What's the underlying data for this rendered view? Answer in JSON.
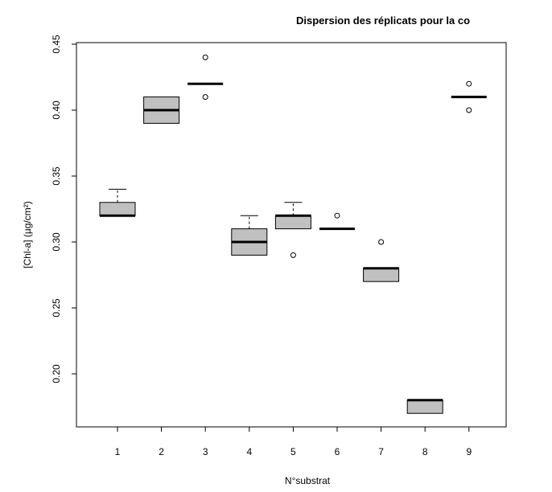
{
  "chart_data": {
    "type": "boxplot",
    "title": "Dispersion des réplicats pour la co",
    "xlabel": "N°substrat",
    "ylabel": "[Chl-a] (µg/cm²)",
    "ylim": [
      0.16,
      0.45
    ],
    "yticks": [
      "0.20",
      "0.25",
      "0.30",
      "0.35",
      "0.40",
      "0.45"
    ],
    "categories": [
      "1",
      "2",
      "3",
      "4",
      "5",
      "6",
      "7",
      "8",
      "9"
    ],
    "boxes": [
      {
        "category": "1",
        "whisker_low": 0.32,
        "q1": 0.32,
        "median": 0.32,
        "q3": 0.33,
        "whisker_high": 0.34,
        "outliers": []
      },
      {
        "category": "2",
        "whisker_low": 0.39,
        "q1": 0.39,
        "median": 0.4,
        "q3": 0.41,
        "whisker_high": 0.41,
        "outliers": []
      },
      {
        "category": "3",
        "whisker_low": 0.42,
        "q1": 0.42,
        "median": 0.42,
        "q3": 0.42,
        "whisker_high": 0.42,
        "outliers": [
          0.44,
          0.41
        ]
      },
      {
        "category": "4",
        "whisker_low": 0.29,
        "q1": 0.29,
        "median": 0.3,
        "q3": 0.31,
        "whisker_high": 0.32,
        "outliers": []
      },
      {
        "category": "5",
        "whisker_low": 0.31,
        "q1": 0.31,
        "median": 0.32,
        "q3": 0.32,
        "whisker_high": 0.33,
        "outliers": [
          0.29
        ]
      },
      {
        "category": "6",
        "whisker_low": 0.31,
        "q1": 0.31,
        "median": 0.31,
        "q3": 0.31,
        "whisker_high": 0.31,
        "outliers": [
          0.32
        ]
      },
      {
        "category": "7",
        "whisker_low": 0.27,
        "q1": 0.27,
        "median": 0.28,
        "q3": 0.28,
        "whisker_high": 0.28,
        "outliers": [
          0.3
        ]
      },
      {
        "category": "8",
        "whisker_low": 0.17,
        "q1": 0.17,
        "median": 0.18,
        "q3": 0.18,
        "whisker_high": 0.18,
        "outliers": []
      },
      {
        "category": "9",
        "whisker_low": 0.41,
        "q1": 0.41,
        "median": 0.41,
        "q3": 0.41,
        "whisker_high": 0.41,
        "outliers": [
          0.42,
          0.4
        ]
      }
    ],
    "box_fill": "#c0c0c0",
    "grid": false,
    "legend": "none"
  }
}
